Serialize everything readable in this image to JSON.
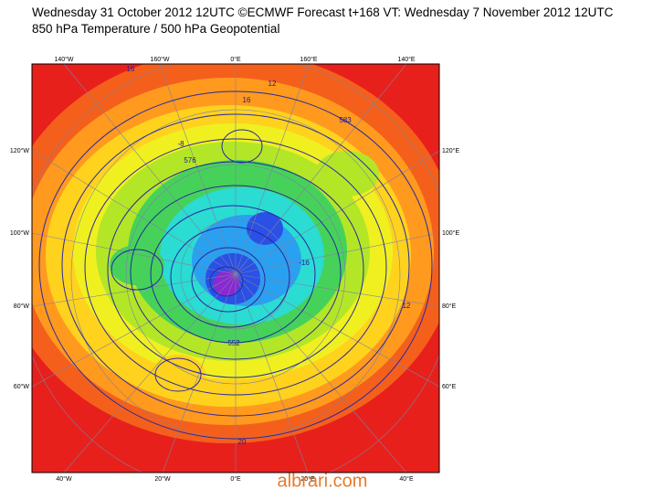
{
  "header": {
    "line1": "Wednesday 31 October 2012 12UTC ©ECMWF Forecast t+168 VT: Wednesday 7 November 2012 12UTC",
    "line2": "850 hPa Temperature / 500 hPa Geopotential"
  },
  "map": {
    "top_labels": [
      "140°W",
      "160°W",
      "0°E",
      "160°E",
      "140°E"
    ],
    "left_labels": [
      "120°W",
      "100°W",
      "80°W",
      "60°W"
    ],
    "right_labels": [
      "120°E",
      "100°E",
      "80°E",
      "60°E"
    ],
    "bottom_labels": [
      "40°W",
      "20°W",
      "0°E",
      "20°E",
      "40°E"
    ],
    "contour_labels": [
      "16",
      "12",
      "576",
      "583",
      "-16",
      "-8",
      "552",
      "16",
      "12",
      "20"
    ]
  },
  "watermark": "albrari.com"
}
